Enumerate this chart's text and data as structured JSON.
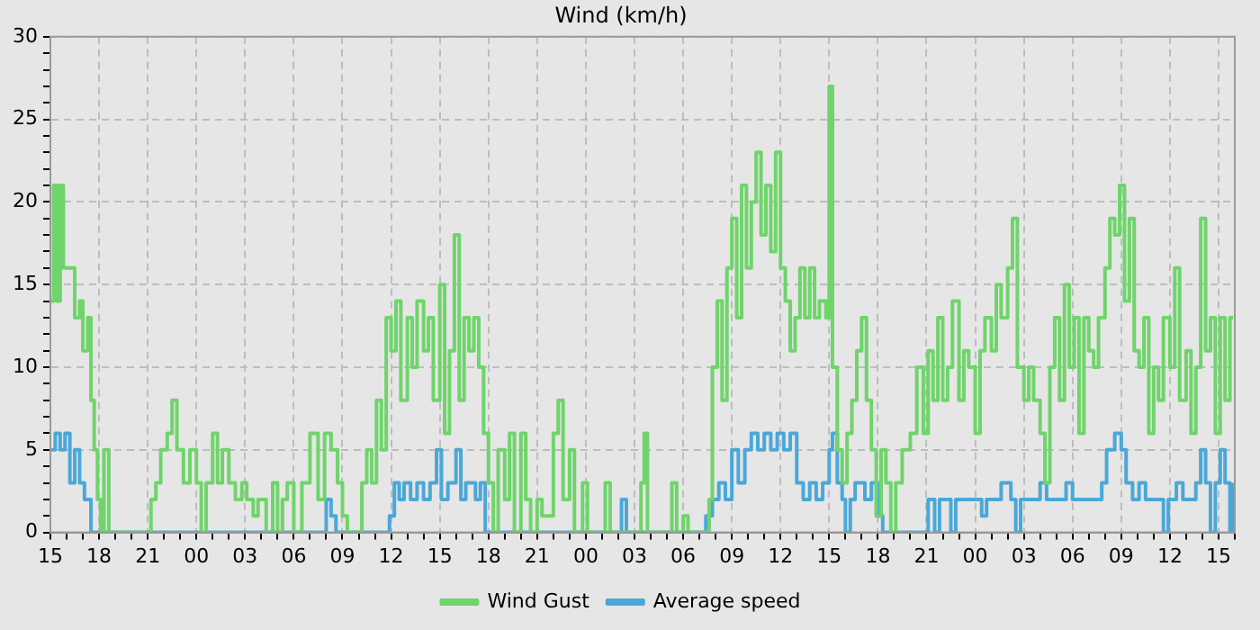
{
  "chart_data": {
    "type": "step",
    "title": "Wind (km/h)",
    "xlim": [
      15,
      88
    ],
    "xticks": [
      {
        "value": 15,
        "label": "15"
      },
      {
        "value": 16,
        "label": null
      },
      {
        "value": 17,
        "label": null
      },
      {
        "value": 18,
        "label": "18"
      },
      {
        "value": 19,
        "label": null
      },
      {
        "value": 20,
        "label": null
      },
      {
        "value": 21,
        "label": "21"
      },
      {
        "value": 22,
        "label": null
      },
      {
        "value": 23,
        "label": null
      },
      {
        "value": 24,
        "label": "00"
      },
      {
        "value": 25,
        "label": null
      },
      {
        "value": 26,
        "label": null
      },
      {
        "value": 27,
        "label": "03"
      },
      {
        "value": 28,
        "label": null
      },
      {
        "value": 29,
        "label": null
      },
      {
        "value": 30,
        "label": "06"
      },
      {
        "value": 31,
        "label": null
      },
      {
        "value": 32,
        "label": null
      },
      {
        "value": 33,
        "label": "09"
      },
      {
        "value": 34,
        "label": null
      },
      {
        "value": 35,
        "label": null
      },
      {
        "value": 36,
        "label": "12"
      },
      {
        "value": 37,
        "label": null
      },
      {
        "value": 38,
        "label": null
      },
      {
        "value": 39,
        "label": "15"
      },
      {
        "value": 40,
        "label": null
      },
      {
        "value": 41,
        "label": null
      },
      {
        "value": 42,
        "label": "18"
      },
      {
        "value": 43,
        "label": null
      },
      {
        "value": 44,
        "label": null
      },
      {
        "value": 45,
        "label": "21"
      },
      {
        "value": 46,
        "label": null
      },
      {
        "value": 47,
        "label": null
      },
      {
        "value": 48,
        "label": "00"
      },
      {
        "value": 49,
        "label": null
      },
      {
        "value": 50,
        "label": null
      },
      {
        "value": 51,
        "label": "03"
      },
      {
        "value": 52,
        "label": null
      },
      {
        "value": 53,
        "label": null
      },
      {
        "value": 54,
        "label": "06"
      },
      {
        "value": 55,
        "label": null
      },
      {
        "value": 56,
        "label": null
      },
      {
        "value": 57,
        "label": "09"
      },
      {
        "value": 58,
        "label": null
      },
      {
        "value": 59,
        "label": null
      },
      {
        "value": 60,
        "label": "12"
      },
      {
        "value": 61,
        "label": null
      },
      {
        "value": 62,
        "label": null
      },
      {
        "value": 63,
        "label": "15"
      },
      {
        "value": 64,
        "label": null
      },
      {
        "value": 65,
        "label": null
      },
      {
        "value": 66,
        "label": "18"
      },
      {
        "value": 67,
        "label": null
      },
      {
        "value": 68,
        "label": null
      },
      {
        "value": 69,
        "label": "21"
      },
      {
        "value": 70,
        "label": null
      },
      {
        "value": 71,
        "label": null
      },
      {
        "value": 72,
        "label": "00"
      },
      {
        "value": 73,
        "label": null
      },
      {
        "value": 74,
        "label": null
      },
      {
        "value": 75,
        "label": "03"
      },
      {
        "value": 76,
        "label": null
      },
      {
        "value": 77,
        "label": null
      },
      {
        "value": 78,
        "label": "06"
      },
      {
        "value": 79,
        "label": null
      },
      {
        "value": 80,
        "label": null
      },
      {
        "value": 81,
        "label": "09"
      },
      {
        "value": 82,
        "label": null
      },
      {
        "value": 83,
        "label": null
      },
      {
        "value": 84,
        "label": "12"
      },
      {
        "value": 85,
        "label": null
      },
      {
        "value": 86,
        "label": null
      },
      {
        "value": 87,
        "label": "15"
      },
      {
        "value": 88,
        "label": null
      }
    ],
    "ylim": [
      0,
      30
    ],
    "yticks": [
      0,
      {
        "value": 1,
        "label": null
      },
      {
        "value": 2,
        "label": null
      },
      {
        "value": 3,
        "label": null
      },
      {
        "value": 4,
        "label": null
      },
      5,
      {
        "value": 6,
        "label": null
      },
      {
        "value": 7,
        "label": null
      },
      {
        "value": 8,
        "label": null
      },
      {
        "value": 9,
        "label": null
      },
      10,
      {
        "value": 11,
        "label": null
      },
      {
        "value": 12,
        "label": null
      },
      {
        "value": 13,
        "label": null
      },
      {
        "value": 14,
        "label": null
      },
      15,
      {
        "value": 16,
        "label": null
      },
      {
        "value": 17,
        "label": null
      },
      {
        "value": 18,
        "label": null
      },
      {
        "value": 19,
        "label": null
      },
      20,
      {
        "value": 21,
        "label": null
      },
      {
        "value": 22,
        "label": null
      },
      {
        "value": 23,
        "label": null
      },
      {
        "value": 24,
        "label": null
      },
      25,
      {
        "value": 26,
        "label": null
      },
      {
        "value": 27,
        "label": null
      },
      {
        "value": 28,
        "label": null
      },
      {
        "value": 29,
        "label": null
      },
      30
    ],
    "grid": true,
    "legend": "bottom",
    "marker": "none",
    "series": [
      {
        "name": "Wind Gust",
        "color": "#6fd46b",
        "x": [
          15.0,
          15.2,
          15.4,
          15.6,
          15.8,
          16.2,
          16.5,
          16.8,
          17.0,
          17.3,
          17.5,
          17.7,
          17.9,
          18.1,
          18.3,
          18.6,
          21.2,
          21.5,
          21.8,
          22.2,
          22.5,
          22.8,
          23.2,
          23.6,
          24.0,
          24.3,
          24.6,
          25.0,
          25.3,
          25.6,
          26.0,
          26.4,
          26.8,
          27.1,
          27.5,
          27.8,
          28.3,
          28.7,
          29.0,
          29.3,
          29.6,
          30.0,
          30.5,
          31.0,
          31.5,
          31.9,
          32.3,
          32.7,
          33.0,
          33.3,
          34.2,
          34.5,
          34.8,
          35.1,
          35.4,
          35.7,
          36.0,
          36.3,
          36.6,
          37.0,
          37.3,
          37.6,
          38.0,
          38.3,
          38.6,
          39.0,
          39.3,
          39.6,
          39.9,
          40.2,
          40.5,
          40.8,
          41.1,
          41.4,
          41.7,
          42.0,
          42.3,
          42.6,
          43.0,
          43.3,
          43.6,
          44.0,
          44.3,
          44.6,
          45.0,
          45.3,
          46.0,
          46.3,
          46.6,
          47.0,
          47.3,
          47.8,
          48.1,
          49.2,
          49.5,
          51.4,
          51.6,
          51.8,
          53.3,
          53.6,
          54.0,
          54.3,
          55.6,
          55.8,
          56.1,
          56.4,
          56.7,
          57.0,
          57.3,
          57.6,
          57.9,
          58.2,
          58.5,
          58.8,
          59.1,
          59.4,
          59.7,
          60.0,
          60.3,
          60.6,
          60.9,
          61.2,
          61.5,
          61.8,
          62.1,
          62.4,
          62.8,
          63.0,
          63.2,
          63.5,
          63.8,
          64.1,
          64.4,
          64.7,
          65.0,
          65.3,
          65.6,
          65.9,
          66.2,
          66.5,
          66.8,
          67.1,
          67.5,
          68.0,
          68.4,
          68.8,
          69.1,
          69.4,
          69.7,
          70.0,
          70.3,
          70.6,
          71.0,
          71.3,
          71.6,
          72.0,
          72.3,
          72.6,
          73.0,
          73.3,
          73.6,
          74.0,
          74.3,
          74.6,
          75.0,
          75.3,
          75.6,
          76.0,
          76.3,
          76.6,
          76.9,
          77.2,
          77.5,
          77.8,
          78.1,
          78.4,
          78.7,
          79.0,
          79.3,
          79.6,
          80.0,
          80.3,
          80.6,
          80.9,
          81.2,
          81.5,
          81.8,
          82.1,
          82.4,
          82.7,
          83.0,
          83.3,
          83.6,
          84.0,
          84.3,
          84.6,
          85.0,
          85.3,
          85.6,
          85.9,
          86.2,
          86.5,
          86.8,
          87.1,
          87.4,
          87.7,
          87.9
        ],
        "values": [
          14,
          21,
          14,
          21,
          16,
          16,
          13,
          14,
          11,
          13,
          8,
          5,
          2,
          0,
          5,
          0,
          2,
          3,
          5,
          6,
          8,
          5,
          3,
          5,
          3,
          0,
          3,
          6,
          3,
          5,
          3,
          2,
          3,
          2,
          1,
          2,
          0,
          3,
          0,
          2,
          3,
          0,
          3,
          6,
          2,
          6,
          5,
          3,
          1,
          0,
          3,
          5,
          3,
          8,
          5,
          13,
          11,
          14,
          8,
          13,
          10,
          14,
          11,
          13,
          8,
          15,
          6,
          11,
          18,
          8,
          13,
          11,
          13,
          10,
          6,
          3,
          0,
          5,
          2,
          6,
          0,
          6,
          2,
          0,
          2,
          1,
          6,
          8,
          2,
          5,
          0,
          3,
          0,
          3,
          0,
          3,
          6,
          0,
          3,
          0,
          1,
          0,
          2,
          10,
          14,
          8,
          16,
          19,
          13,
          21,
          16,
          20,
          23,
          18,
          21,
          17,
          23,
          16,
          14,
          11,
          13,
          16,
          13,
          16,
          13,
          14,
          13,
          27,
          10,
          5,
          3,
          6,
          8,
          11,
          13,
          8,
          5,
          1,
          5,
          3,
          0,
          3,
          5,
          6,
          10,
          6,
          11,
          8,
          13,
          8,
          10,
          14,
          8,
          11,
          10,
          6,
          11,
          13,
          11,
          15,
          13,
          16,
          19,
          10,
          8,
          10,
          8,
          6,
          3,
          10,
          13,
          8,
          15,
          10,
          13,
          6,
          13,
          11,
          10,
          13,
          16,
          19,
          18,
          21,
          14,
          19,
          11,
          10,
          13,
          6,
          10,
          8,
          13,
          10,
          16,
          8,
          11,
          6,
          10,
          19,
          11,
          13,
          6,
          13,
          8,
          13,
          13
        ]
      },
      {
        "name": "Average speed",
        "color": "#4aa8d8",
        "x": [
          15.0,
          15.3,
          15.6,
          15.9,
          16.2,
          16.5,
          16.8,
          17.1,
          17.5,
          32.0,
          32.3,
          32.6,
          35.9,
          36.2,
          36.5,
          36.8,
          37.2,
          37.6,
          38.0,
          38.4,
          38.8,
          39.1,
          39.5,
          40.0,
          40.3,
          40.6,
          41.2,
          41.5,
          41.8,
          50.2,
          50.5,
          55.4,
          55.8,
          56.2,
          56.6,
          57.0,
          57.4,
          57.8,
          58.2,
          58.6,
          59.0,
          59.4,
          59.8,
          60.2,
          60.6,
          61.0,
          61.4,
          61.8,
          62.2,
          62.6,
          63.0,
          63.2,
          63.5,
          63.8,
          64.0,
          64.3,
          64.6,
          65.2,
          65.6,
          66.0,
          66.3,
          69.1,
          69.5,
          69.8,
          70.5,
          70.8,
          72.4,
          72.7,
          73.3,
          73.6,
          74.2,
          74.5,
          74.8,
          75.6,
          76.0,
          76.4,
          77.6,
          78.0,
          79.8,
          80.1,
          80.6,
          81.0,
          81.3,
          81.7,
          82.1,
          82.5,
          83.6,
          83.9,
          84.4,
          84.8,
          85.6,
          85.9,
          86.2,
          86.5,
          86.8,
          87.1,
          87.4,
          87.7,
          87.9
        ],
        "values": [
          5,
          6,
          5,
          6,
          3,
          5,
          3,
          2,
          0,
          2,
          1,
          0,
          1,
          3,
          2,
          3,
          2,
          3,
          2,
          3,
          5,
          2,
          3,
          5,
          2,
          3,
          2,
          3,
          0,
          2,
          0,
          1,
          2,
          3,
          2,
          5,
          3,
          5,
          6,
          5,
          6,
          5,
          6,
          5,
          6,
          3,
          2,
          3,
          2,
          3,
          5,
          6,
          3,
          2,
          0,
          2,
          3,
          2,
          3,
          1,
          0,
          2,
          0,
          2,
          0,
          2,
          1,
          2,
          2,
          3,
          2,
          0,
          2,
          2,
          3,
          2,
          3,
          2,
          3,
          5,
          6,
          5,
          3,
          2,
          3,
          2,
          0,
          2,
          3,
          2,
          3,
          5,
          3,
          0,
          3,
          5,
          3,
          0,
          3
        ]
      }
    ]
  }
}
